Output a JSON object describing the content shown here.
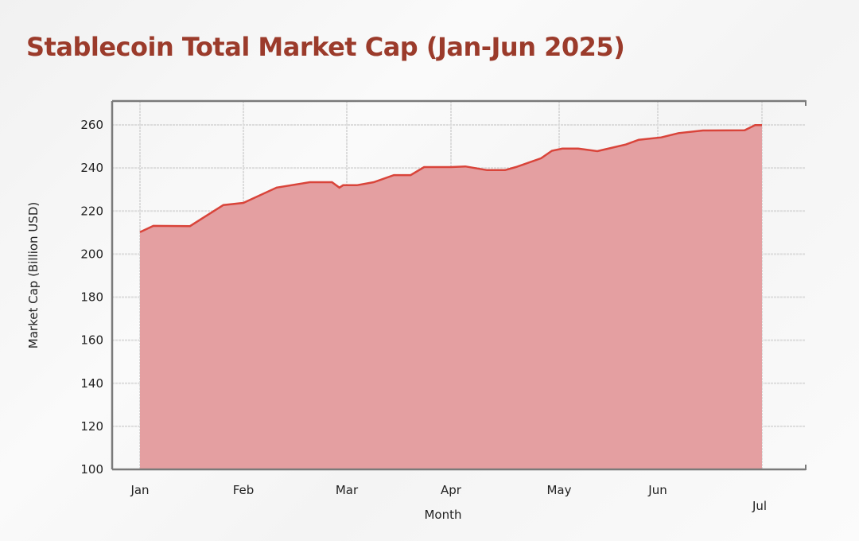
{
  "chart_data": {
    "type": "area",
    "title": "Stablecoin Total Market Cap (Jan-Jun 2025)",
    "xlabel": "Month",
    "ylabel": "Market Cap (Billion USD)",
    "ylim": [
      100,
      270
    ],
    "yticks": [
      100,
      120,
      140,
      160,
      180,
      200,
      220,
      240,
      260
    ],
    "xticks": [
      "Jan",
      "Feb",
      "Mar",
      "Apr",
      "May",
      "Jun",
      "Jul"
    ],
    "grid": true,
    "colors": {
      "line": "#d9443a",
      "fill": "#e49fa1",
      "title": "#9b3b2b"
    },
    "series": [
      {
        "x": [
          "2025-01-01",
          "2025-01-05",
          "2025-01-16",
          "2025-01-26",
          "2025-02-01",
          "2025-02-10",
          "2025-02-19",
          "2025-02-25",
          "2025-02-27",
          "2025-02-28",
          "2025-03-04",
          "2025-03-09",
          "2025-03-15",
          "2025-03-20",
          "2025-03-24",
          "2025-04-01",
          "2025-04-05",
          "2025-04-11",
          "2025-04-16",
          "2025-04-19",
          "2025-04-26",
          "2025-04-29",
          "2025-05-02",
          "2025-05-07",
          "2025-05-13",
          "2025-05-22",
          "2025-05-26",
          "2025-06-02",
          "2025-06-07",
          "2025-06-14",
          "2025-06-26",
          "2025-06-29",
          "2025-07-01"
        ],
        "y": [
          210.2,
          213.1,
          213.0,
          222.8,
          223.8,
          230.9,
          233.4,
          233.4,
          230.9,
          232.0,
          232.0,
          233.4,
          236.7,
          236.7,
          240.4,
          240.4,
          240.7,
          239.0,
          239.0,
          240.4,
          244.5,
          248.0,
          249.0,
          249.0,
          247.8,
          250.9,
          253.1,
          254.2,
          256.2,
          257.4,
          257.5,
          259.9,
          259.9
        ]
      }
    ]
  }
}
